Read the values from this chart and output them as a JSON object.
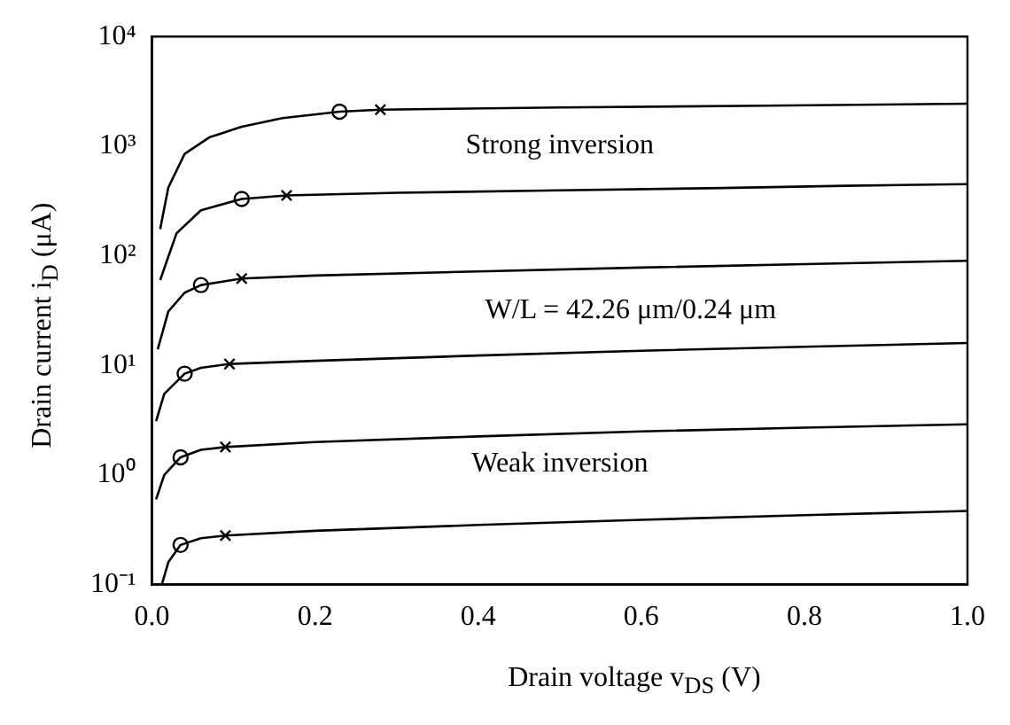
{
  "chart_data": {
    "type": "line",
    "xlabel": "Drain voltage v$_{DS}$ (V)",
    "ylabel": "Drain current i$_{D}$ (μA)",
    "log": "y",
    "xlim": [
      0,
      1
    ],
    "xticks": [
      {
        "value": 0,
        "label": "0.0"
      },
      0.2,
      0.4,
      0.6,
      0.8,
      {
        "value": 1,
        "label": "1.0"
      }
    ],
    "ylim": [
      0.1,
      10000
    ],
    "yticks": [
      {
        "value": 0.1,
        "label": "10⁻¹"
      },
      {
        "value": 1,
        "label": "10⁰"
      },
      {
        "value": 10,
        "label": "10¹"
      },
      {
        "value": 100,
        "label": "10²"
      },
      {
        "value": 1000,
        "label": "10³"
      },
      {
        "value": 10000,
        "label": "10⁴"
      }
    ],
    "grid": false,
    "legend": false,
    "marker": "none",
    "line_style": "solid",
    "annotations": [
      "Strong inversion",
      "W/L = 42.26 μm/0.24 μm",
      "Weak inversion"
    ],
    "series": [
      {
        "color": "#000000",
        "x": [
          0.01,
          0.02,
          0.04,
          0.07,
          0.11,
          0.16,
          0.23,
          0.28,
          0.5,
          0.75,
          1.0
        ],
        "values": [
          175,
          420,
          850,
          1200,
          1500,
          1800,
          2060,
          2150,
          2250,
          2340,
          2440
        ]
      },
      {
        "color": "#000000",
        "x": [
          0.01,
          0.03,
          0.06,
          0.11,
          0.165,
          0.3,
          0.5,
          0.7,
          0.85,
          1.0
        ],
        "values": [
          60,
          160,
          260,
          330,
          355,
          375,
          395,
          415,
          435,
          450
        ]
      },
      {
        "color": "#000000",
        "x": [
          0.007,
          0.02,
          0.04,
          0.06,
          0.11,
          0.2,
          0.4,
          0.6,
          0.8,
          1.0
        ],
        "values": [
          14,
          31,
          46,
          54,
          62,
          66,
          72,
          78,
          84,
          90
        ]
      },
      {
        "color": "#000000",
        "x": [
          0.005,
          0.015,
          0.04,
          0.06,
          0.095,
          0.2,
          0.4,
          0.6,
          0.8,
          1.0
        ],
        "values": [
          3.1,
          5.5,
          8.4,
          9.5,
          10.3,
          11,
          12.3,
          13.6,
          14.8,
          16
        ]
      },
      {
        "color": "#000000",
        "x": [
          0.005,
          0.015,
          0.035,
          0.06,
          0.09,
          0.2,
          0.4,
          0.6,
          0.8,
          1.0
        ],
        "values": [
          0.6,
          1.0,
          1.45,
          1.7,
          1.8,
          2.0,
          2.25,
          2.5,
          2.7,
          2.9
        ]
      },
      {
        "color": "#000000",
        "x": [
          0.012,
          0.02,
          0.035,
          0.06,
          0.09,
          0.2,
          0.4,
          0.6,
          0.8,
          1.0
        ],
        "values": [
          0.1,
          0.16,
          0.23,
          0.265,
          0.28,
          0.31,
          0.35,
          0.39,
          0.43,
          0.47
        ]
      },
      {
        "type": "scatter",
        "marker": "circle",
        "color": "#000000",
        "x": [
          0.23,
          0.11,
          0.06,
          0.04,
          0.035,
          0.035
        ],
        "values": [
          2060,
          330,
          54,
          8.4,
          1.45,
          0.23
        ]
      },
      {
        "type": "scatter",
        "marker": "cross",
        "color": "#000000",
        "x": [
          0.28,
          0.165,
          0.11,
          0.095,
          0.09,
          0.09
        ],
        "values": [
          2150,
          355,
          62,
          10.3,
          1.8,
          0.28
        ]
      }
    ]
  }
}
